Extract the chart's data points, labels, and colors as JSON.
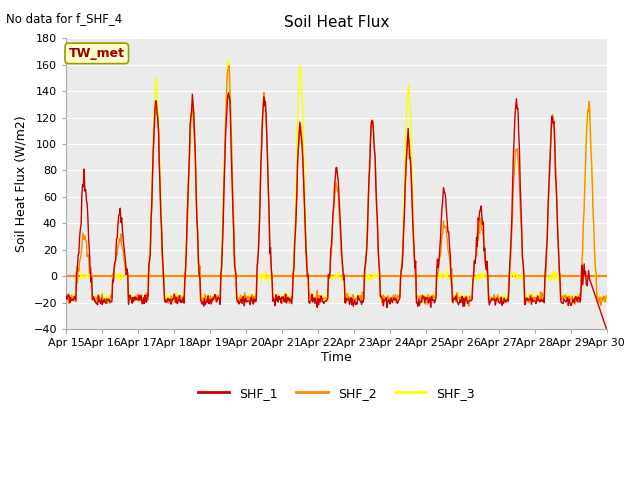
{
  "title": "Soil Heat Flux",
  "ylabel": "Soil Heat Flux (W/m2)",
  "xlabel": "Time",
  "no_data_text": "No data for f_SHF_4",
  "annotation_text": "TW_met",
  "ylim": [
    -40,
    180
  ],
  "yticks": [
    -40,
    -20,
    0,
    20,
    40,
    60,
    80,
    100,
    120,
    140,
    160,
    180
  ],
  "xtick_labels": [
    "Apr 15",
    "Apr 16",
    "Apr 17",
    "Apr 18",
    "Apr 19",
    "Apr 20",
    "Apr 21",
    "Apr 22",
    "Apr 23",
    "Apr 24",
    "Apr 25",
    "Apr 26",
    "Apr 27",
    "Apr 28",
    "Apr 29",
    "Apr 30"
  ],
  "colors": {
    "SHF_1": "#cc0000",
    "SHF_2": "#ff8800",
    "SHF_3": "#ffff00",
    "plot_bg": "#ebebeb",
    "grid": "#ffffff",
    "annotation_bg": "#ffffcc",
    "annotation_border": "#999900",
    "zero_line": "#ff8800"
  },
  "peak_heights_shf1": [
    72,
    47,
    131,
    133,
    139,
    137,
    113,
    80,
    118,
    104,
    65,
    50,
    135,
    120,
    0
  ],
  "peak_heights_shf2": [
    30,
    29,
    130,
    127,
    160,
    137,
    115,
    70,
    119,
    103,
    38,
    40,
    99,
    121,
    130
  ],
  "peak_heights_shf3": [
    0,
    0,
    147,
    126,
    162,
    0,
    157,
    0,
    0,
    142,
    0,
    0,
    0,
    0,
    130
  ],
  "legend_entries": [
    "SHF_1",
    "SHF_2",
    "SHF_3"
  ],
  "figsize": [
    6.4,
    4.8
  ],
  "dpi": 100
}
